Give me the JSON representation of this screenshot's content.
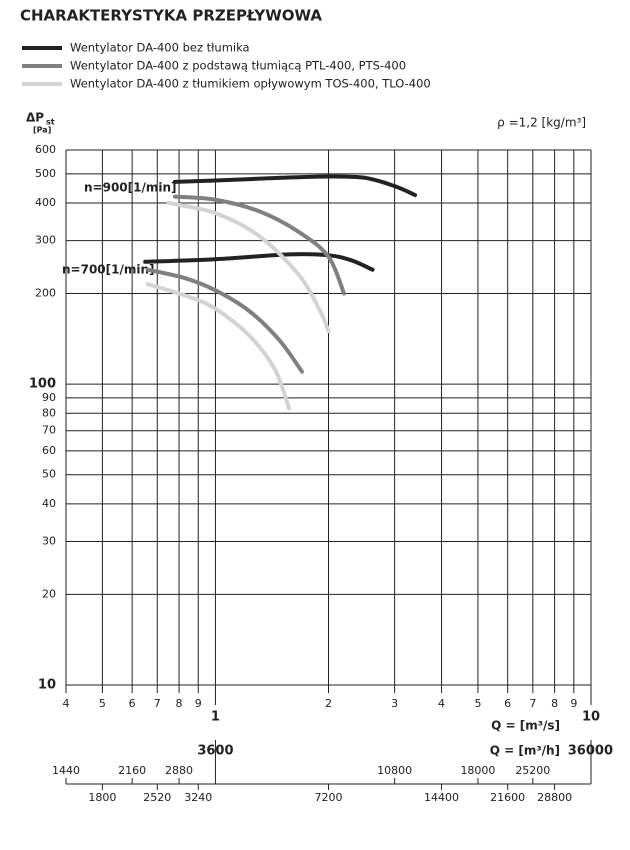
{
  "chart_data": {
    "type": "line",
    "title": "CHARAKTERYSTYKA PRZEPŁYWOWA",
    "y_label": {
      "symbol": "ΔP",
      "subscript": "st",
      "unit": "[Pa]"
    },
    "density_note": "ρ =1,2 [kg/m³]",
    "x_label": "Q = [m³/s]",
    "x2_label": "Q = [m³/h]",
    "log_x": true,
    "log_y": true,
    "grid": true,
    "xlim": [
      0.4,
      10
    ],
    "xticks": [
      {
        "value": 0.4,
        "label": "4"
      },
      {
        "value": 0.5,
        "label": "5"
      },
      {
        "value": 0.6,
        "label": "6"
      },
      {
        "value": 0.7,
        "label": "7"
      },
      {
        "value": 0.8,
        "label": "8"
      },
      {
        "value": 0.9,
        "label": "9"
      },
      1,
      2,
      3,
      4,
      5,
      6,
      7,
      8,
      9,
      10
    ],
    "ylim": [
      10,
      600
    ],
    "yticks": [
      10,
      20,
      30,
      40,
      50,
      60,
      70,
      80,
      90,
      100,
      200,
      300,
      400,
      500,
      600
    ],
    "x2lim": [
      1440,
      36000
    ],
    "x2ticks": [
      1440,
      1800,
      2160,
      2520,
      2880,
      3240,
      3600,
      7200,
      10800,
      14400,
      18000,
      21600,
      25200,
      28800,
      36000
    ],
    "annotations": [
      "n=900[1/min]",
      "n=700[1/min]"
    ],
    "series": [
      {
        "name": "Wentylator DA-400 bez tłumika",
        "color": "#222222",
        "curves": [
          {
            "x": [
              0.78,
              1.0,
              1.5,
              2.0,
              2.5,
              3.0,
              3.4
            ],
            "values": [
              470,
              475,
              485,
              490,
              485,
              455,
              425
            ]
          },
          {
            "x": [
              0.65,
              1.0,
              1.57,
              2.0,
              2.3,
              2.62
            ],
            "values": [
              255,
              260,
              270,
              268,
              258,
              240
            ]
          }
        ]
      },
      {
        "name": "Wentylator DA-400 z podstawą tłumiącą PTL-400, PTS-400",
        "color": "#808080",
        "curves": [
          {
            "x": [
              0.78,
              1.0,
              1.31,
              1.67,
              2.0,
              2.2
            ],
            "values": [
              420,
              410,
              375,
              320,
              265,
              200
            ]
          },
          {
            "x": [
              0.66,
              0.83,
              1.0,
              1.23,
              1.48,
              1.7
            ],
            "values": [
              240,
              225,
              205,
              175,
              140,
              110
            ]
          }
        ]
      },
      {
        "name": "Wentylator DA-400 z tłumikiem opływowym TOS-400, TLO-400",
        "color": "#d3d3d3",
        "curves": [
          {
            "x": [
              0.75,
              1.0,
              1.31,
              1.67,
              1.9,
              2.0
            ],
            "values": [
              400,
              370,
              310,
              230,
              175,
              150
            ]
          },
          {
            "x": [
              0.66,
              0.85,
              1.0,
              1.23,
              1.44,
              1.57
            ],
            "values": [
              215,
              195,
              178,
              145,
              112,
              83
            ]
          }
        ]
      }
    ]
  }
}
